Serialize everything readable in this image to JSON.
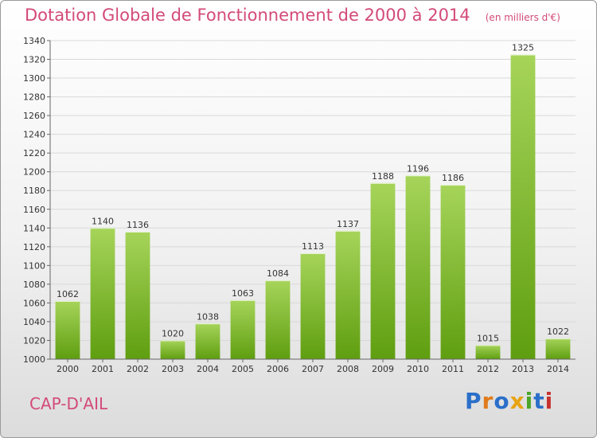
{
  "header": {
    "title": "Dotation Globale de Fonctionnement de 2000 à 2014",
    "unit": "(en milliers d'€)"
  },
  "footer": {
    "commune": "CAP-D'AIL",
    "logo": [
      "P",
      "r",
      "o",
      "x",
      "i",
      "t",
      "i"
    ]
  },
  "colors": {
    "title": "#d34a7a",
    "bar_light": "#a6d45a",
    "bar_dark": "#5f9e10",
    "logo": [
      "#2a6fc9",
      "#e07b1c",
      "#2a6fc9",
      "#e8a312",
      "#4aa52a",
      "#2a6fc9",
      "#c7322f"
    ]
  },
  "chart_data": {
    "type": "bar",
    "title": "Dotation Globale de Fonctionnement de 2000 à 2014",
    "subtitle": "(en milliers d'€)",
    "xlabel": "",
    "ylabel": "",
    "categories": [
      "2000",
      "2001",
      "2002",
      "2003",
      "2004",
      "2005",
      "2006",
      "2007",
      "2008",
      "2009",
      "2010",
      "2011",
      "2012",
      "2013",
      "2014"
    ],
    "values": [
      1062,
      1140,
      1136,
      1020,
      1038,
      1063,
      1084,
      1113,
      1137,
      1188,
      1196,
      1186,
      1015,
      1325,
      1022
    ],
    "ylim": [
      1000,
      1340
    ],
    "ytick_step": 20,
    "grid": true
  }
}
